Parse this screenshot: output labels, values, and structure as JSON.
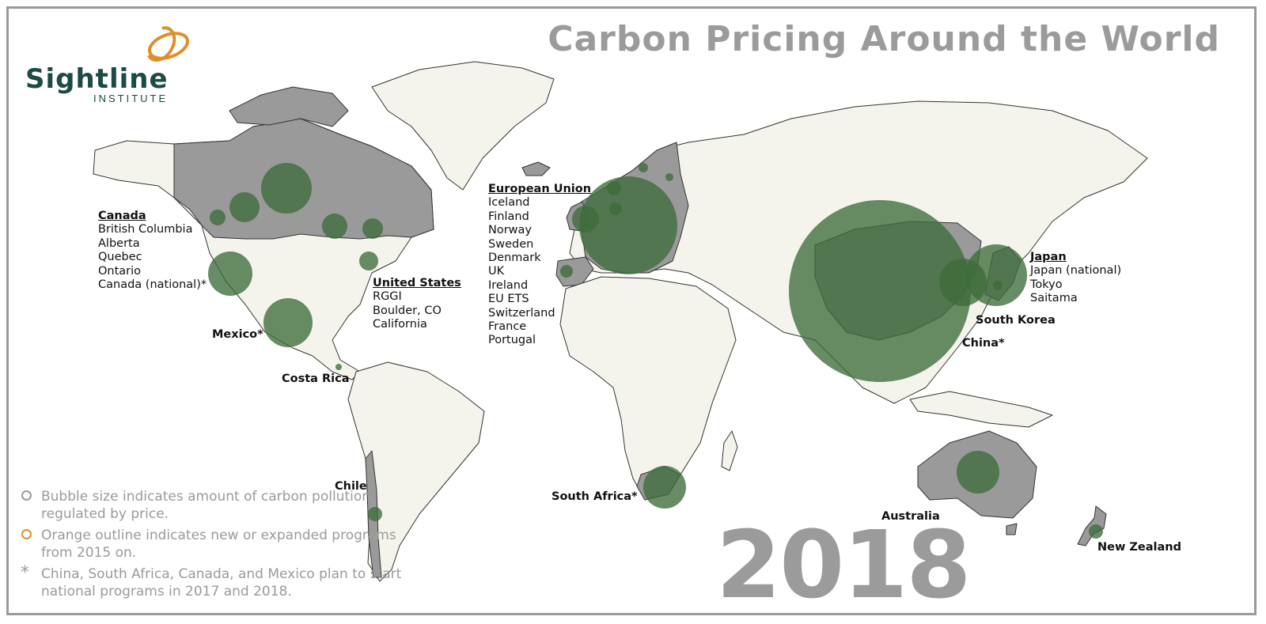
{
  "title": "Carbon Pricing Around the World",
  "logo": {
    "name": "Sightline",
    "sub": "INSTITUTE",
    "accent_color": "#e08e2a",
    "text_color": "#1d4a45"
  },
  "year": "2018",
  "colors": {
    "covered_region": "#9a9a9a",
    "land": "#f4f3ec",
    "bubble": "#3e6b3a",
    "bubble_dark": "#244f24",
    "new_program_outline": "#e08e2a"
  },
  "regions": {
    "canada": {
      "heading": "Canada",
      "items": [
        "British Columbia",
        "Alberta",
        "Quebec",
        "Ontario",
        "Canada (national)*"
      ]
    },
    "united_states": {
      "heading": "United States",
      "items": [
        "RGGI",
        "Boulder, CO",
        "California"
      ]
    },
    "european_union": {
      "heading": "European Union",
      "items": [
        "Iceland",
        "Finland",
        "Norway",
        "Sweden",
        "Denmark",
        "UK",
        "Ireland",
        "EU ETS",
        "Switzerland",
        "France",
        "Portugal"
      ]
    },
    "japan": {
      "heading": "Japan",
      "items": [
        "Japan (national)",
        "Tokyo",
        "Saitama"
      ]
    }
  },
  "places": {
    "mexico": "Mexico*",
    "costa_rica": "Costa Rica",
    "chile": "Chile",
    "south_africa": "South Africa*",
    "south_korea": "South Korea",
    "china": "China*",
    "australia": "Australia",
    "new_zealand": "New Zealand"
  },
  "legend": {
    "bubble_size": "Bubble size indicates amount of carbon pollution regulated by price.",
    "orange_outline": "Orange outline indicates new or expanded programs from 2015 on.",
    "asterisk": "China, South Africa, Canada, and Mexico plan to start national programs in 2017 and 2018.",
    "asterisk_symbol": "*"
  }
}
